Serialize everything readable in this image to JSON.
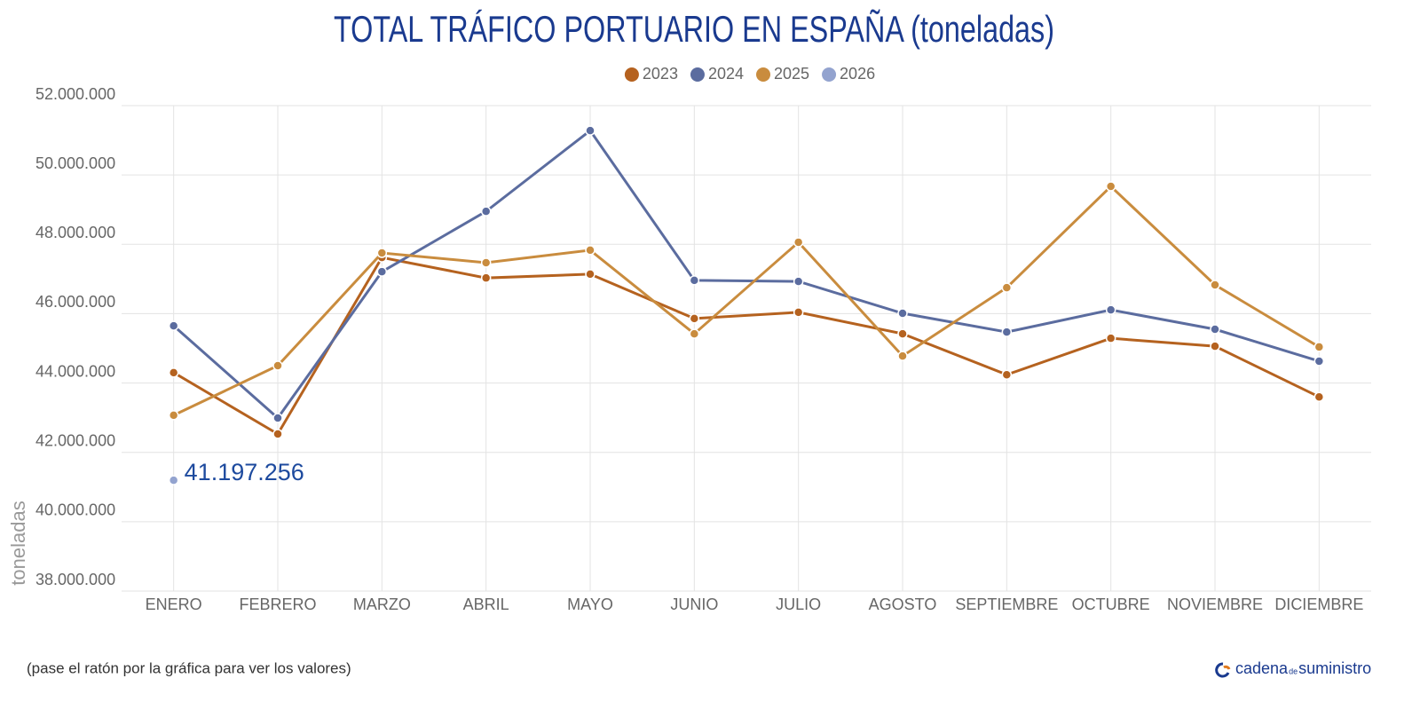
{
  "chart_data": {
    "type": "line",
    "title": "TOTAL TRÁFICO PORTUARIO EN ESPAÑA (toneladas)",
    "y_label": "toneladas",
    "categories": [
      "ENERO",
      "FEBRERO",
      "MARZO",
      "ABRIL",
      "MAYO",
      "JUNIO",
      "JULIO",
      "AGOSTO",
      "SEPTIEMBRE",
      "OCTUBRE",
      "NOVIEMBRE",
      "DICIEMBRE"
    ],
    "series": [
      {
        "name": "2023",
        "color": "#b5621f",
        "values": [
          44300000,
          42530000,
          47620000,
          47030000,
          47140000,
          45860000,
          46040000,
          45420000,
          44240000,
          45290000,
          45060000,
          43600000
        ]
      },
      {
        "name": "2024",
        "color": "#5b6c9f",
        "values": [
          45650000,
          42990000,
          47210000,
          48950000,
          51280000,
          46960000,
          46930000,
          46010000,
          45470000,
          46110000,
          45550000,
          44630000
        ]
      },
      {
        "name": "2025",
        "color": "#c98c3e",
        "values": [
          43070000,
          44500000,
          47750000,
          47470000,
          47830000,
          45420000,
          48060000,
          44780000,
          46750000,
          49670000,
          46830000,
          45040000
        ]
      },
      {
        "name": "2026",
        "color": "#93a3cf",
        "values": [
          41197256,
          null,
          null,
          null,
          null,
          null,
          null,
          null,
          null,
          null,
          null,
          null
        ],
        "value_labels": [
          "41.197.256",
          null,
          null,
          null,
          null,
          null,
          null,
          null,
          null,
          null,
          null,
          null
        ]
      }
    ],
    "ylim": [
      38000000,
      52000000
    ],
    "yticks": [
      {
        "value": 38000000,
        "label": "38.000.000"
      },
      {
        "value": 40000000,
        "label": "40.000.000"
      },
      {
        "value": 42000000,
        "label": "42.000.000"
      },
      {
        "value": 44000000,
        "label": "44.000.000"
      },
      {
        "value": 46000000,
        "label": "46.000.000"
      },
      {
        "value": 48000000,
        "label": "48.000.000"
      },
      {
        "value": 50000000,
        "label": "50.000.000"
      },
      {
        "value": 52000000,
        "label": "52.000.000"
      }
    ],
    "grid": true,
    "legend": "top"
  },
  "footer_note": "(pase el ratón por la gráfica para ver los valores)",
  "brand": [
    "cadena",
    "de",
    "suministro"
  ]
}
